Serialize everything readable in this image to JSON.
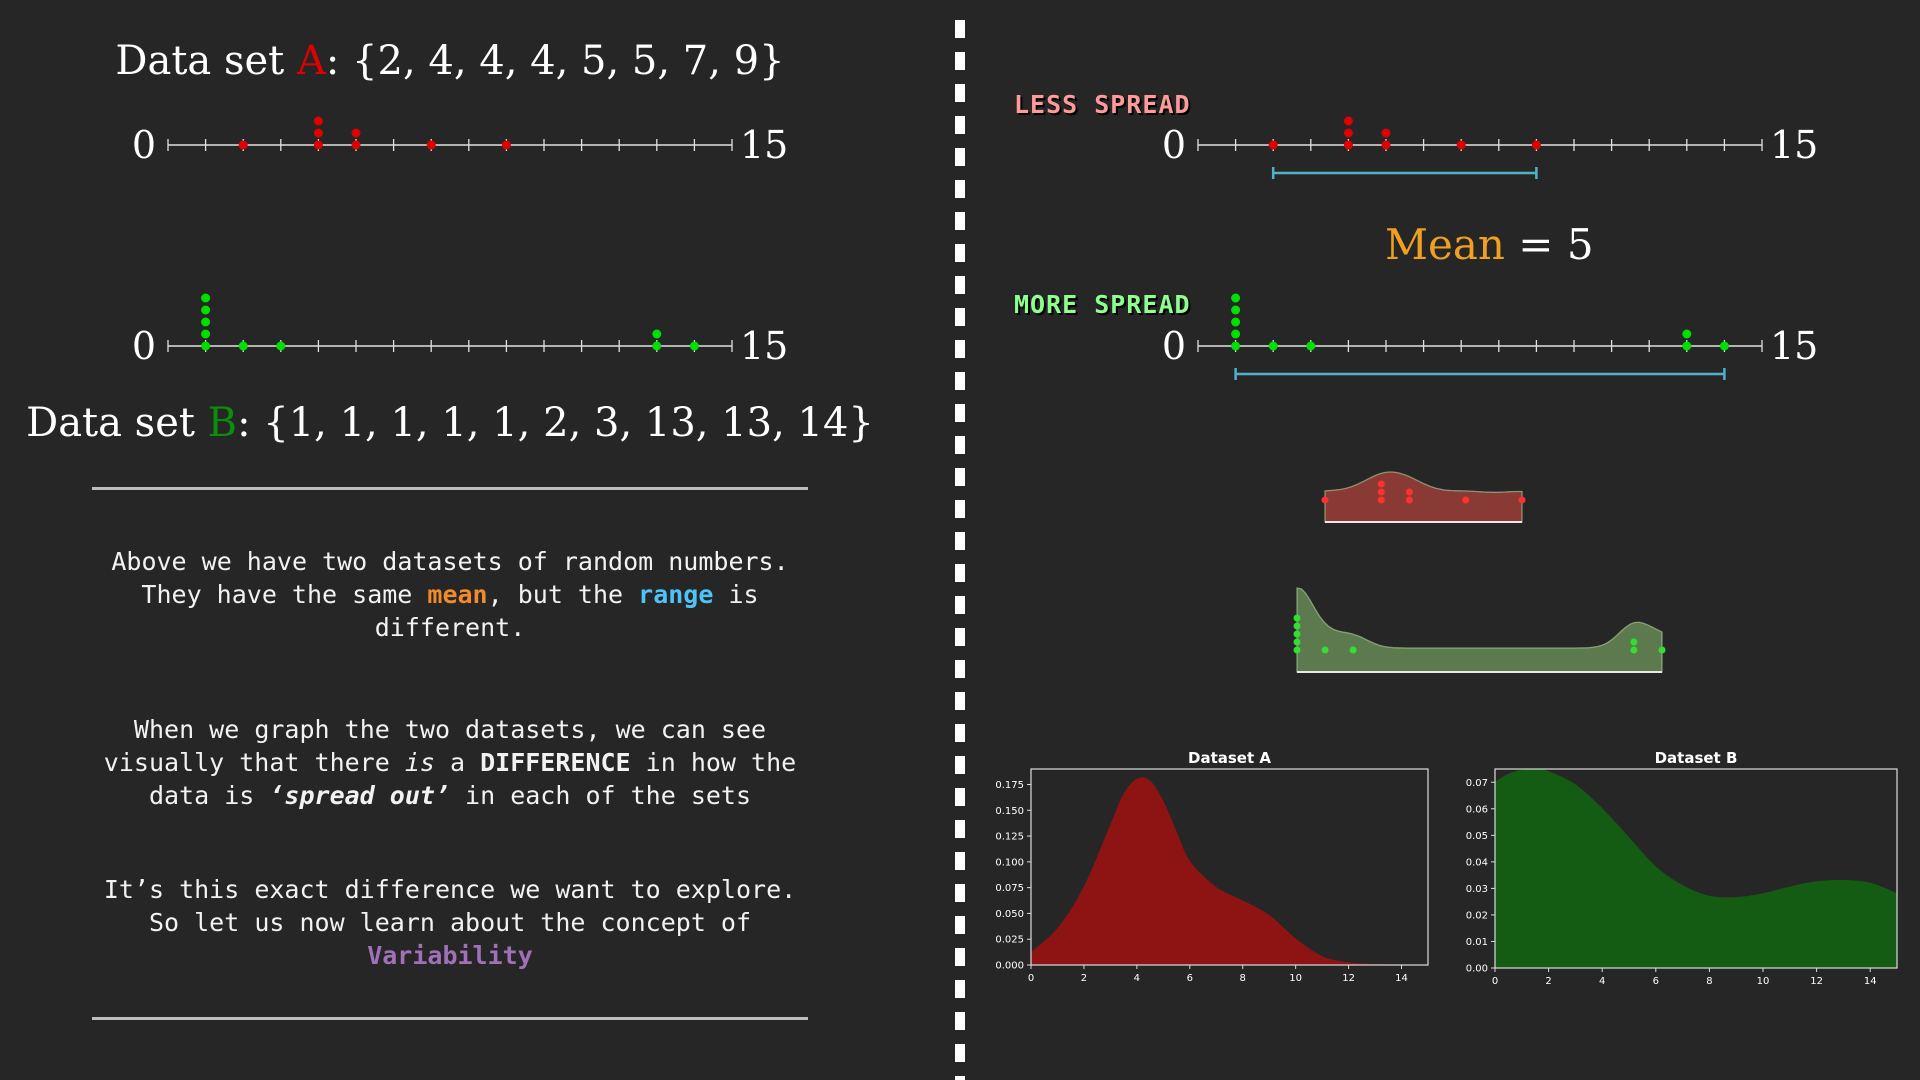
{
  "left": {
    "dataset_a": {
      "prefix": "Data set ",
      "letter": "A",
      "values_text": ": {2, 4, 4, 4, 5, 5, 7, 9}"
    },
    "dataset_b": {
      "prefix": "Data set ",
      "letter": "B",
      "values_text": ": {1, 1, 1, 1, 1, 2, 3, 13, 13, 14}"
    },
    "axis_min_label": "0",
    "axis_max_label": "15",
    "paragraph1": {
      "line1": "Above we have two datasets of random numbers.",
      "line2_a": "They have the same ",
      "line2_mean": "mean",
      "line2_b": ", but the ",
      "line2_range": "range",
      "line2_c": " is",
      "line3": "different."
    },
    "paragraph2": {
      "line1": "When we graph the two datasets, we can see",
      "line2_a": "visually that there ",
      "line2_is": "is",
      "line2_b": " a ",
      "line2_diff": "DIFFERENCE",
      "line2_c": " in how the",
      "line3_a": "data is ",
      "line3_spread": "‘spread out’",
      "line3_b": " in each of the sets"
    },
    "paragraph3": {
      "line1": "It’s this exact difference we want to explore.",
      "line2": "So let us now learn about the concept of",
      "line3": "Variability"
    }
  },
  "right": {
    "less_spread_label": "LESS SPREAD",
    "more_spread_label": "MORE SPREAD",
    "mean_word": "Mean",
    "mean_rest": " = 5",
    "axis_min_label": "0",
    "axis_max_label": "15"
  },
  "colors": {
    "dataset_a": "#e00000",
    "dataset_b": "#00e000",
    "range_bar": "#4fb3c8",
    "kde_a_fill": "#8e1414",
    "kde_b_fill": "#145c14",
    "violin_a_fill": "#8a3a35",
    "violin_b_fill": "#5d7a4e"
  },
  "chart_data": [
    {
      "type": "area",
      "title": "Dataset A",
      "x_ticks": [
        "0",
        "2",
        "4",
        "6",
        "8",
        "10",
        "12",
        "14"
      ],
      "y_ticks": [
        "0.000",
        "0.025",
        "0.050",
        "0.075",
        "0.100",
        "0.125",
        "0.150",
        "0.175"
      ],
      "xlim": [
        0,
        15
      ],
      "ylim": [
        0,
        0.19
      ],
      "x": [
        0,
        1,
        2,
        3,
        3.5,
        4,
        4.5,
        5,
        5.5,
        6,
        7,
        8,
        9,
        10,
        11,
        12,
        13,
        14,
        15
      ],
      "y": [
        0.012,
        0.035,
        0.075,
        0.135,
        0.165,
        0.18,
        0.178,
        0.158,
        0.128,
        0.1,
        0.075,
        0.062,
        0.048,
        0.025,
        0.008,
        0.002,
        0.0005,
        0.0001,
        0
      ],
      "color": "#8e1414"
    },
    {
      "type": "area",
      "title": "Dataset B",
      "x_ticks": [
        "0",
        "2",
        "4",
        "6",
        "8",
        "10",
        "12",
        "14"
      ],
      "y_ticks": [
        "0.00",
        "0.01",
        "0.02",
        "0.03",
        "0.04",
        "0.05",
        "0.06",
        "0.07"
      ],
      "xlim": [
        0,
        15
      ],
      "ylim": [
        0,
        0.075
      ],
      "x": [
        0,
        0.5,
        1,
        1.5,
        2,
        3,
        4,
        5,
        6,
        7,
        8,
        9,
        10,
        11,
        12,
        13,
        14,
        15
      ],
      "y": [
        0.07,
        0.073,
        0.0745,
        0.075,
        0.074,
        0.069,
        0.06,
        0.049,
        0.038,
        0.031,
        0.027,
        0.0265,
        0.028,
        0.0305,
        0.0325,
        0.033,
        0.032,
        0.028
      ],
      "color": "#145c14"
    }
  ],
  "dotplots": {
    "dataset_a": [
      2,
      4,
      4,
      4,
      5,
      5,
      7,
      9
    ],
    "dataset_b": [
      1,
      1,
      1,
      1,
      1,
      2,
      3,
      13,
      13,
      14
    ],
    "axis_range": [
      0,
      15
    ],
    "range_a": [
      2,
      9
    ],
    "range_b": [
      1,
      14
    ]
  }
}
